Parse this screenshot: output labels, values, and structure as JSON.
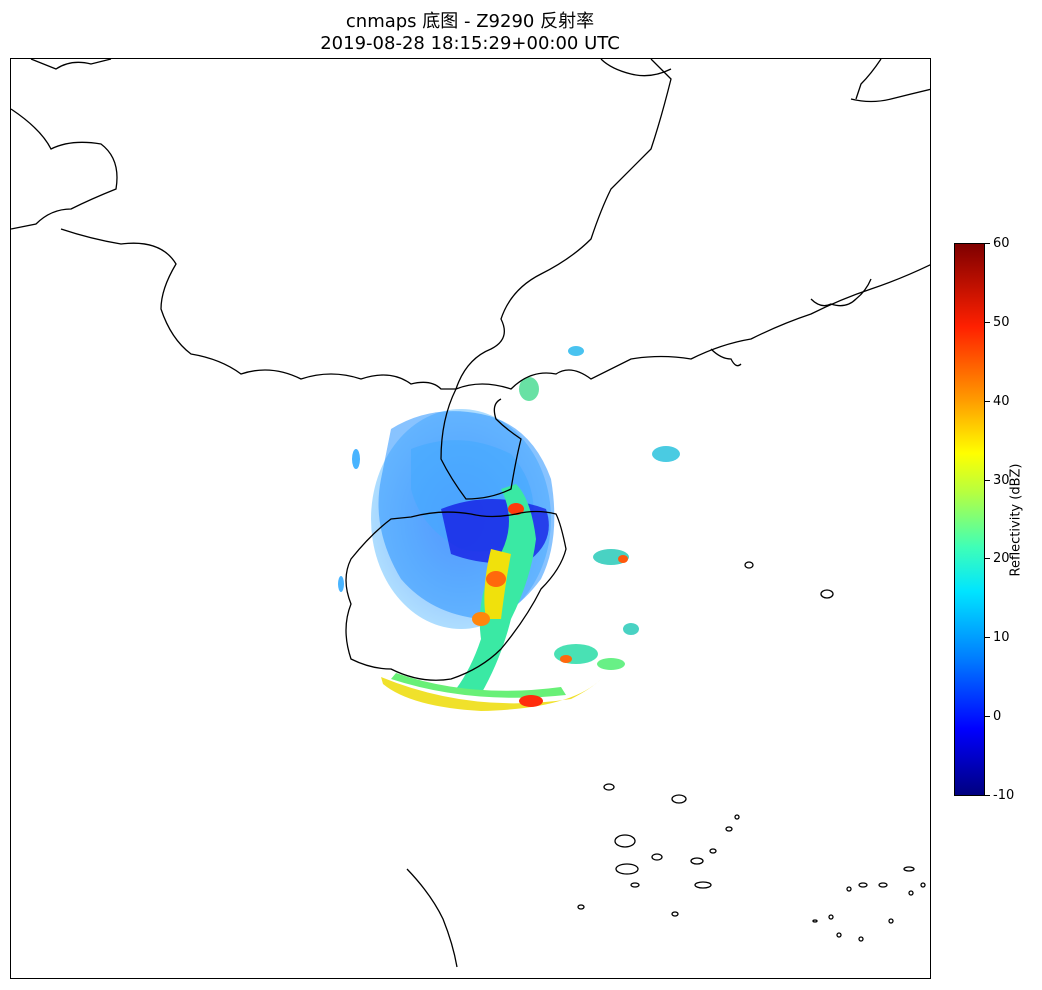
{
  "title": {
    "line1": "cnmaps 底图 - Z9290 反射率",
    "line2": "2019-08-28 18:15:29+00:00 UTC"
  },
  "colorbar": {
    "label": "Reflectivity (dBZ)",
    "ticks": [
      "60",
      "50",
      "40",
      "30",
      "20",
      "10",
      "0",
      "-10"
    ],
    "range": [
      -10,
      60
    ],
    "colormap": "jet"
  },
  "map": {
    "basemap": "cnmaps",
    "boundary_color": "#000000",
    "background": "#ffffff"
  }
}
